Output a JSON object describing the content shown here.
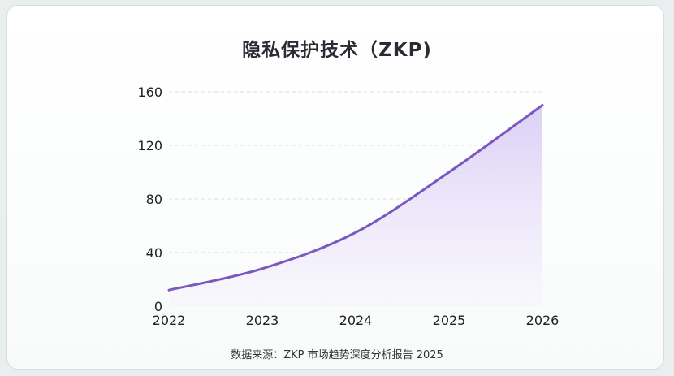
{
  "title": "隐私保护技术（ZKP)",
  "source": "数据来源：ZKP 市场趋势深度分析报告 2025",
  "colors": {
    "line": "#7b57c0",
    "area_top": "#d9cdf5",
    "area_bottom": "#f7f4fd",
    "grid": "#d9dede"
  },
  "chart_data": {
    "type": "area",
    "title": "隐私保护技术（ZKP)",
    "xlabel": "",
    "ylabel": "",
    "x": [
      "2022",
      "2023",
      "2024",
      "2025",
      "2026"
    ],
    "series": [
      {
        "values": [
          12,
          28,
          55,
          100,
          150
        ]
      }
    ],
    "ylim": [
      0,
      160
    ],
    "yticks": [
      0,
      40,
      80,
      120,
      160
    ],
    "grid": true,
    "legend": "none"
  }
}
